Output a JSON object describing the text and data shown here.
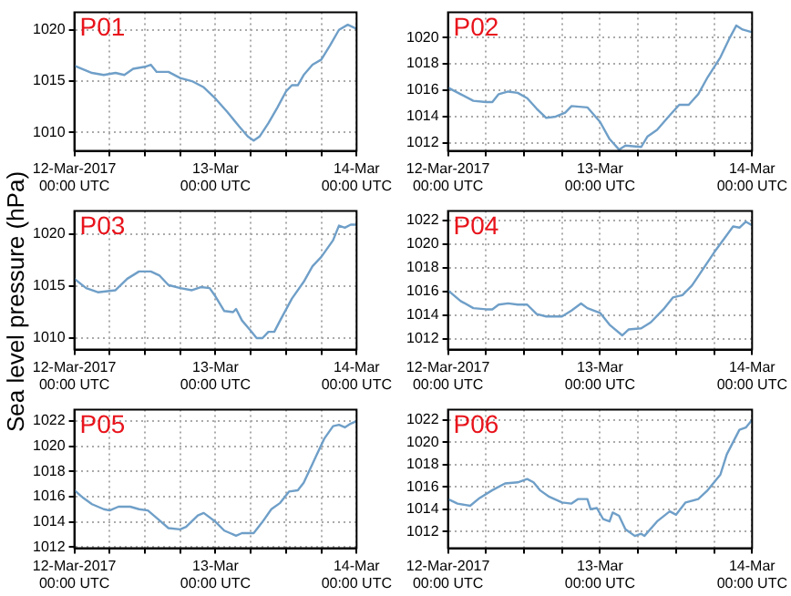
{
  "chart_data": [
    {
      "type": "line",
      "title": "P01",
      "x": [
        "2017-03-12T00:00",
        "2017-03-12T03:00",
        "2017-03-12T05:00",
        "2017-03-12T07:00",
        "2017-03-12T08:30",
        "2017-03-12T10:00",
        "2017-03-12T12:00",
        "2017-03-12T13:00",
        "2017-03-12T14:00",
        "2017-03-12T16:00",
        "2017-03-12T18:00",
        "2017-03-12T20:00",
        "2017-03-12T22:00",
        "2017-03-13T00:00",
        "2017-03-13T02:00",
        "2017-03-13T04:00",
        "2017-03-13T05:30",
        "2017-03-13T06:30",
        "2017-03-13T07:30",
        "2017-03-13T09:00",
        "2017-03-13T10:30",
        "2017-03-13T12:00",
        "2017-03-13T13:00",
        "2017-03-13T14:00",
        "2017-03-13T15:00",
        "2017-03-13T16:30",
        "2017-03-13T18:00",
        "2017-03-13T19:30",
        "2017-03-13T21:00",
        "2017-03-13T22:30",
        "2017-03-14T00:00"
      ],
      "xlim": [
        "2017-03-12T00:00",
        "2017-03-14T00:00"
      ],
      "xticks": [
        {
          "value": "2017-03-12T00:00",
          "label": "12-Mar-2017\n00:00 UTC"
        },
        {
          "value": "2017-03-12T06:00",
          "label": null
        },
        {
          "value": "2017-03-12T12:00",
          "label": null
        },
        {
          "value": "2017-03-12T18:00",
          "label": null
        },
        {
          "value": "2017-03-13T00:00",
          "label": "13-Mar\n00:00 UTC"
        },
        {
          "value": "2017-03-13T06:00",
          "label": null
        },
        {
          "value": "2017-03-13T12:00",
          "label": null
        },
        {
          "value": "2017-03-13T18:00",
          "label": null
        },
        {
          "value": "2017-03-14T00:00",
          "label": "14-Mar\n00:00 UTC"
        }
      ],
      "ylim": [
        1008.2,
        1021.7
      ],
      "yticks": [
        1010,
        1015,
        1020
      ],
      "grid": true,
      "series": [
        {
          "color": "#6f9fc8",
          "values": [
            1016.5,
            1015.8,
            1015.6,
            1015.8,
            1015.6,
            1016.2,
            1016.4,
            1016.6,
            1015.9,
            1015.9,
            1015.3,
            1015.0,
            1014.4,
            1013.3,
            1012.0,
            1010.6,
            1009.6,
            1009.2,
            1009.6,
            1010.9,
            1012.4,
            1014.0,
            1014.6,
            1014.6,
            1015.6,
            1016.6,
            1017.1,
            1018.5,
            1020.0,
            1020.5,
            1020.1
          ]
        }
      ]
    },
    {
      "type": "line",
      "title": "P02",
      "x": [
        "2017-03-12T00:00",
        "2017-03-12T02:00",
        "2017-03-12T04:00",
        "2017-03-12T06:00",
        "2017-03-12T07:00",
        "2017-03-12T08:00",
        "2017-03-12T09:30",
        "2017-03-12T11:00",
        "2017-03-12T12:30",
        "2017-03-12T14:00",
        "2017-03-12T15:30",
        "2017-03-12T17:00",
        "2017-03-12T18:30",
        "2017-03-12T19:30",
        "2017-03-12T22:00",
        "2017-03-13T00:00",
        "2017-03-13T01:30",
        "2017-03-13T03:00",
        "2017-03-13T04:00",
        "2017-03-13T06:30",
        "2017-03-13T07:30",
        "2017-03-13T09:00",
        "2017-03-13T11:00",
        "2017-03-13T12:30",
        "2017-03-13T14:00",
        "2017-03-13T15:30",
        "2017-03-13T17:00",
        "2017-03-13T19:00",
        "2017-03-13T20:30",
        "2017-03-13T21:30",
        "2017-03-13T22:30",
        "2017-03-14T00:00"
      ],
      "xlim": [
        "2017-03-12T00:00",
        "2017-03-14T00:00"
      ],
      "xticks": [
        {
          "value": "2017-03-12T00:00",
          "label": "12-Mar-2017\n00:00 UTC"
        },
        {
          "value": "2017-03-12T06:00",
          "label": null
        },
        {
          "value": "2017-03-12T12:00",
          "label": null
        },
        {
          "value": "2017-03-12T18:00",
          "label": null
        },
        {
          "value": "2017-03-13T00:00",
          "label": "13-Mar\n00:00 UTC"
        },
        {
          "value": "2017-03-13T06:00",
          "label": null
        },
        {
          "value": "2017-03-13T12:00",
          "label": null
        },
        {
          "value": "2017-03-13T18:00",
          "label": null
        },
        {
          "value": "2017-03-14T00:00",
          "label": "14-Mar\n00:00 UTC"
        }
      ],
      "ylim": [
        1011.4,
        1021.9
      ],
      "yticks": [
        1012,
        1014,
        1016,
        1018,
        1020
      ],
      "grid": true,
      "series": [
        {
          "color": "#6f9fc8",
          "values": [
            1016.2,
            1015.7,
            1015.2,
            1015.1,
            1015.1,
            1015.7,
            1015.9,
            1015.8,
            1015.4,
            1014.6,
            1013.9,
            1014.0,
            1014.3,
            1014.8,
            1014.7,
            1013.6,
            1012.3,
            1011.5,
            1011.8,
            1011.7,
            1012.5,
            1013.0,
            1014.1,
            1014.9,
            1014.9,
            1015.7,
            1017.0,
            1018.5,
            1020.0,
            1020.9,
            1020.6,
            1020.4
          ]
        }
      ]
    },
    {
      "type": "line",
      "title": "P03",
      "ylabel": "Sea level pressure (hPa)",
      "x": [
        "2017-03-12T00:00",
        "2017-03-12T02:00",
        "2017-03-12T04:00",
        "2017-03-12T07:00",
        "2017-03-12T09:00",
        "2017-03-12T11:00",
        "2017-03-12T13:00",
        "2017-03-12T14:30",
        "2017-03-12T16:00",
        "2017-03-12T18:00",
        "2017-03-12T20:00",
        "2017-03-12T21:30",
        "2017-03-12T23:00",
        "2017-03-13T00:00",
        "2017-03-13T01:30",
        "2017-03-13T03:00",
        "2017-03-13T03:30",
        "2017-03-13T04:30",
        "2017-03-13T06:00",
        "2017-03-13T07:00",
        "2017-03-13T08:00",
        "2017-03-13T09:00",
        "2017-03-13T10:00",
        "2017-03-13T11:00",
        "2017-03-13T13:00",
        "2017-03-13T15:00",
        "2017-03-13T16:30",
        "2017-03-13T18:00",
        "2017-03-13T20:00",
        "2017-03-13T21:00",
        "2017-03-13T22:00",
        "2017-03-13T23:00",
        "2017-03-14T00:00"
      ],
      "xlim": [
        "2017-03-12T00:00",
        "2017-03-14T00:00"
      ],
      "xticks": [
        {
          "value": "2017-03-12T00:00",
          "label": "12-Mar-2017\n00:00 UTC"
        },
        {
          "value": "2017-03-12T06:00",
          "label": null
        },
        {
          "value": "2017-03-12T12:00",
          "label": null
        },
        {
          "value": "2017-03-12T18:00",
          "label": null
        },
        {
          "value": "2017-03-13T00:00",
          "label": "13-Mar\n00:00 UTC"
        },
        {
          "value": "2017-03-13T06:00",
          "label": null
        },
        {
          "value": "2017-03-13T12:00",
          "label": null
        },
        {
          "value": "2017-03-13T18:00",
          "label": null
        },
        {
          "value": "2017-03-14T00:00",
          "label": "14-Mar\n00:00 UTC"
        }
      ],
      "ylim": [
        1008.9,
        1022.2
      ],
      "yticks": [
        1010,
        1015,
        1020
      ],
      "grid": true,
      "series": [
        {
          "color": "#6f9fc8",
          "values": [
            1015.7,
            1014.8,
            1014.4,
            1014.6,
            1015.7,
            1016.4,
            1016.4,
            1016.0,
            1015.1,
            1014.8,
            1014.6,
            1014.9,
            1014.8,
            1014.0,
            1012.6,
            1012.5,
            1012.8,
            1011.7,
            1010.7,
            1010.0,
            1010.0,
            1010.6,
            1010.6,
            1011.7,
            1013.8,
            1015.4,
            1016.9,
            1017.8,
            1019.4,
            1020.8,
            1020.6,
            1020.9,
            1020.9
          ]
        }
      ]
    },
    {
      "type": "line",
      "title": "P04",
      "x": [
        "2017-03-12T00:00",
        "2017-03-12T02:00",
        "2017-03-12T04:00",
        "2017-03-12T06:00",
        "2017-03-12T07:00",
        "2017-03-12T08:00",
        "2017-03-12T09:30",
        "2017-03-12T11:00",
        "2017-03-12T12:30",
        "2017-03-12T14:00",
        "2017-03-12T15:30",
        "2017-03-12T18:00",
        "2017-03-12T19:30",
        "2017-03-12T21:00",
        "2017-03-12T22:00",
        "2017-03-13T00:00",
        "2017-03-13T01:30",
        "2017-03-13T03:30",
        "2017-03-13T04:30",
        "2017-03-13T06:30",
        "2017-03-13T08:00",
        "2017-03-13T10:00",
        "2017-03-13T11:30",
        "2017-03-13T13:00",
        "2017-03-13T14:30",
        "2017-03-13T16:00",
        "2017-03-13T18:00",
        "2017-03-13T19:30",
        "2017-03-13T21:00",
        "2017-03-13T22:00",
        "2017-03-13T23:00",
        "2017-03-14T00:00"
      ],
      "xlim": [
        "2017-03-12T00:00",
        "2017-03-14T00:00"
      ],
      "xticks": [
        {
          "value": "2017-03-12T00:00",
          "label": "12-Mar-2017\n00:00 UTC"
        },
        {
          "value": "2017-03-12T06:00",
          "label": null
        },
        {
          "value": "2017-03-12T12:00",
          "label": null
        },
        {
          "value": "2017-03-12T18:00",
          "label": null
        },
        {
          "value": "2017-03-13T00:00",
          "label": "13-Mar\n00:00 UTC"
        },
        {
          "value": "2017-03-13T06:00",
          "label": null
        },
        {
          "value": "2017-03-13T12:00",
          "label": null
        },
        {
          "value": "2017-03-13T18:00",
          "label": null
        },
        {
          "value": "2017-03-14T00:00",
          "label": "14-Mar\n00:00 UTC"
        }
      ],
      "ylim": [
        1011.1,
        1022.8
      ],
      "yticks": [
        1012,
        1014,
        1016,
        1018,
        1020,
        1022
      ],
      "grid": true,
      "series": [
        {
          "color": "#6f9fc8",
          "values": [
            1016.1,
            1015.2,
            1014.6,
            1014.5,
            1014.5,
            1014.9,
            1015.0,
            1014.9,
            1014.9,
            1014.1,
            1013.9,
            1013.9,
            1014.4,
            1015.0,
            1014.6,
            1014.2,
            1013.2,
            1012.3,
            1012.8,
            1012.9,
            1013.4,
            1014.5,
            1015.5,
            1015.7,
            1016.5,
            1017.7,
            1019.3,
            1020.4,
            1021.5,
            1021.4,
            1021.9,
            1021.6
          ]
        }
      ]
    },
    {
      "type": "line",
      "title": "P05",
      "x": [
        "2017-03-12T00:00",
        "2017-03-12T01:30",
        "2017-03-12T03:00",
        "2017-03-12T05:00",
        "2017-03-12T06:00",
        "2017-03-12T07:30",
        "2017-03-12T09:30",
        "2017-03-12T11:00",
        "2017-03-12T12:30",
        "2017-03-12T14:00",
        "2017-03-12T16:00",
        "2017-03-12T18:00",
        "2017-03-12T19:00",
        "2017-03-12T21:00",
        "2017-03-12T22:00",
        "2017-03-13T00:00",
        "2017-03-13T01:30",
        "2017-03-13T03:30",
        "2017-03-13T04:30",
        "2017-03-13T06:30",
        "2017-03-13T08:00",
        "2017-03-13T09:30",
        "2017-03-13T11:00",
        "2017-03-13T12:30",
        "2017-03-13T14:00",
        "2017-03-13T15:00",
        "2017-03-13T17:00",
        "2017-03-13T18:30",
        "2017-03-13T20:00",
        "2017-03-13T21:00",
        "2017-03-13T22:00",
        "2017-03-13T23:00",
        "2017-03-14T00:00"
      ],
      "xlim": [
        "2017-03-12T00:00",
        "2017-03-14T00:00"
      ],
      "xticks": [
        {
          "value": "2017-03-12T00:00",
          "label": "12-Mar-2017\n00:00 UTC"
        },
        {
          "value": "2017-03-12T06:00",
          "label": null
        },
        {
          "value": "2017-03-12T12:00",
          "label": null
        },
        {
          "value": "2017-03-12T18:00",
          "label": null
        },
        {
          "value": "2017-03-13T00:00",
          "label": "13-Mar\n00:00 UTC"
        },
        {
          "value": "2017-03-13T06:00",
          "label": null
        },
        {
          "value": "2017-03-13T12:00",
          "label": null
        },
        {
          "value": "2017-03-13T18:00",
          "label": null
        },
        {
          "value": "2017-03-14T00:00",
          "label": "14-Mar\n00:00 UTC"
        }
      ],
      "ylim": [
        1011.9,
        1022.9
      ],
      "yticks": [
        1012,
        1014,
        1016,
        1018,
        1020,
        1022
      ],
      "grid": true,
      "series": [
        {
          "color": "#6f9fc8",
          "values": [
            1016.5,
            1015.9,
            1015.4,
            1015.0,
            1014.9,
            1015.2,
            1015.2,
            1015.0,
            1014.9,
            1014.3,
            1013.5,
            1013.4,
            1013.6,
            1014.5,
            1014.7,
            1014.0,
            1013.3,
            1012.9,
            1013.1,
            1013.1,
            1014.0,
            1015.0,
            1015.5,
            1016.4,
            1016.5,
            1017.1,
            1019.1,
            1020.6,
            1021.6,
            1021.7,
            1021.5,
            1021.8,
            1022.0
          ]
        }
      ]
    },
    {
      "type": "line",
      "title": "P06",
      "x": [
        "2017-03-12T00:00",
        "2017-03-12T01:30",
        "2017-03-12T03:30",
        "2017-03-12T05:00",
        "2017-03-12T07:00",
        "2017-03-12T09:00",
        "2017-03-12T11:00",
        "2017-03-12T12:30",
        "2017-03-12T13:30",
        "2017-03-12T14:30",
        "2017-03-12T16:00",
        "2017-03-12T18:00",
        "2017-03-12T19:30",
        "2017-03-12T20:30",
        "2017-03-12T22:00",
        "2017-03-12T22:30",
        "2017-03-12T23:30",
        "2017-03-13T00:30",
        "2017-03-13T01:30",
        "2017-03-13T02:00",
        "2017-03-13T03:00",
        "2017-03-13T04:00",
        "2017-03-13T05:30",
        "2017-03-13T06:30",
        "2017-03-13T07:00",
        "2017-03-13T09:00",
        "2017-03-13T11:00",
        "2017-03-13T12:00",
        "2017-03-13T13:30",
        "2017-03-13T15:30",
        "2017-03-13T17:00",
        "2017-03-13T19:00",
        "2017-03-13T20:00",
        "2017-03-13T21:00",
        "2017-03-13T22:00",
        "2017-03-13T23:00",
        "2017-03-14T00:00"
      ],
      "xlim": [
        "2017-03-12T00:00",
        "2017-03-14T00:00"
      ],
      "xticks": [
        {
          "value": "2017-03-12T00:00",
          "label": "12-Mar-2017\n00:00 UTC"
        },
        {
          "value": "2017-03-12T06:00",
          "label": null
        },
        {
          "value": "2017-03-12T12:00",
          "label": null
        },
        {
          "value": "2017-03-12T18:00",
          "label": null
        },
        {
          "value": "2017-03-13T00:00",
          "label": "13-Mar\n00:00 UTC"
        },
        {
          "value": "2017-03-13T06:00",
          "label": null
        },
        {
          "value": "2017-03-13T12:00",
          "label": null
        },
        {
          "value": "2017-03-13T18:00",
          "label": null
        },
        {
          "value": "2017-03-14T00:00",
          "label": "14-Mar\n00:00 UTC"
        }
      ],
      "ylim": [
        1010.5,
        1022.9
      ],
      "yticks": [
        1012,
        1014,
        1016,
        1018,
        1020,
        1022
      ],
      "grid": true,
      "series": [
        {
          "color": "#6f9fc8",
          "values": [
            1014.9,
            1014.5,
            1014.3,
            1015.0,
            1015.7,
            1016.3,
            1016.4,
            1016.7,
            1016.4,
            1015.7,
            1015.1,
            1014.6,
            1014.5,
            1014.9,
            1014.9,
            1014.0,
            1014.1,
            1013.1,
            1012.9,
            1013.7,
            1013.4,
            1012.2,
            1011.6,
            1011.8,
            1011.6,
            1012.9,
            1013.8,
            1013.5,
            1014.6,
            1014.9,
            1015.7,
            1017.1,
            1018.9,
            1020.0,
            1021.1,
            1021.3,
            1022.0
          ]
        }
      ]
    }
  ]
}
